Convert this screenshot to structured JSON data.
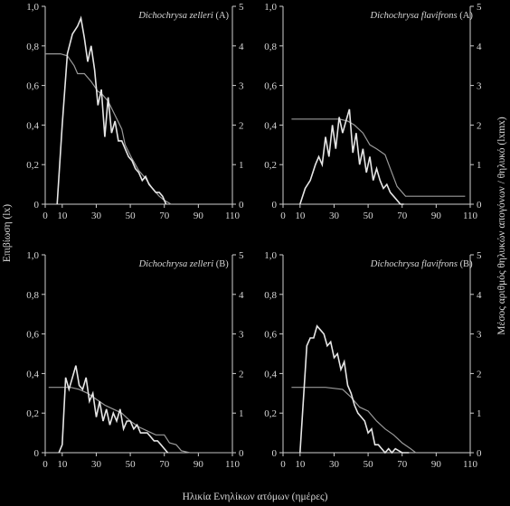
{
  "figure": {
    "xlabel": "Ηλικία Ενηλίκων ατόμων (ημέρες)",
    "ylabel_left": "Επιβίωση (lx)",
    "ylabel_right": "Μέσος αριθμός θηλυκών απογόνων / θηλυκό (lxmx)"
  },
  "colors": {
    "background": "#000000",
    "survival": "#e6e6e6",
    "fecundity": "#9a9a9a",
    "axis": "#cfcfcf"
  },
  "chart_data": [
    {
      "type": "line",
      "title_italic": "Dichochrysa zelleri",
      "title_suffix": " (A)",
      "x_ticks": [
        0,
        10,
        30,
        50,
        70,
        90,
        110
      ],
      "y_ticks": [
        "0",
        "0,2",
        "0,4",
        "0,6",
        "0,8",
        "1,0"
      ],
      "y2_ticks": [
        "0",
        "1",
        "2",
        "3",
        "4",
        "5"
      ],
      "xlim": [
        0,
        110
      ],
      "ylim": [
        0,
        1.0
      ],
      "y2lim": [
        0,
        5
      ],
      "series": [
        {
          "axis": "right",
          "role": "survival",
          "x": [
            7,
            10,
            13,
            16,
            19,
            21,
            23,
            25,
            27,
            29,
            31,
            33,
            35,
            37,
            39,
            41,
            43,
            45,
            47,
            49,
            51,
            53,
            55,
            57,
            59,
            61,
            63,
            65,
            67,
            69,
            71
          ],
          "y": [
            0,
            2.0,
            3.8,
            4.3,
            4.5,
            4.7,
            4.2,
            3.6,
            4.0,
            3.4,
            2.5,
            2.9,
            1.7,
            2.7,
            1.8,
            2.1,
            1.6,
            1.6,
            1.4,
            1.2,
            1.1,
            0.9,
            0.8,
            0.6,
            0.7,
            0.5,
            0.4,
            0.3,
            0.3,
            0.2,
            0
          ]
        },
        {
          "axis": "left",
          "role": "fecundity",
          "x": [
            0,
            9,
            13,
            17,
            19,
            23,
            27,
            31,
            33,
            37,
            41,
            45,
            47,
            51,
            55,
            59,
            63,
            67,
            70,
            74
          ],
          "y": [
            0.76,
            0.76,
            0.75,
            0.7,
            0.66,
            0.66,
            0.62,
            0.57,
            0.56,
            0.52,
            0.45,
            0.38,
            0.3,
            0.23,
            0.17,
            0.13,
            0.08,
            0.04,
            0.02,
            0
          ]
        }
      ]
    },
    {
      "type": "line",
      "title_italic": "Dichochrysa flavifrons",
      "title_suffix": " (A)",
      "x_ticks": [
        0,
        10,
        30,
        50,
        70,
        90,
        110
      ],
      "y_ticks": [
        "0",
        "0,2",
        "0,4",
        "0,6",
        "0,8",
        "1,0"
      ],
      "y2_ticks": [
        "0",
        "1",
        "2",
        "3",
        "4",
        "5"
      ],
      "xlim": [
        0,
        110
      ],
      "ylim": [
        0,
        1.0
      ],
      "y2lim": [
        0,
        5
      ],
      "series": [
        {
          "axis": "right",
          "role": "survival",
          "x": [
            10,
            13,
            16,
            19,
            21,
            23,
            25,
            27,
            29,
            31,
            33,
            35,
            37,
            39,
            41,
            43,
            45,
            47,
            49,
            51,
            53,
            55,
            57,
            59,
            61,
            63,
            65,
            67,
            69,
            71
          ],
          "y": [
            0,
            0.4,
            0.6,
            1.0,
            1.2,
            1.0,
            1.7,
            1.2,
            2.0,
            1.4,
            2.2,
            1.8,
            2.1,
            2.4,
            1.3,
            1.8,
            1.0,
            1.4,
            0.8,
            1.2,
            0.6,
            0.9,
            0.6,
            0.4,
            0.5,
            0.3,
            0.2,
            0.1,
            0,
            0
          ]
        },
        {
          "axis": "left",
          "role": "fecundity",
          "x": [
            5,
            15,
            25,
            33,
            38,
            42,
            47,
            51,
            55,
            60,
            63,
            67,
            72,
            80,
            95,
            107
          ],
          "y": [
            0.43,
            0.43,
            0.43,
            0.43,
            0.42,
            0.4,
            0.36,
            0.3,
            0.28,
            0.25,
            0.18,
            0.09,
            0.04,
            0.04,
            0.04,
            0.04
          ]
        }
      ]
    },
    {
      "type": "line",
      "title_italic": "Dichochrysa zelleri",
      "title_suffix": " (B)",
      "x_ticks": [
        0,
        10,
        30,
        50,
        70,
        90,
        110
      ],
      "y_ticks": [
        "0",
        "0,2",
        "0,4",
        "0,6",
        "0,8",
        "1,0"
      ],
      "y2_ticks": [
        "0",
        "1",
        "2",
        "3",
        "4",
        "5"
      ],
      "xlim": [
        0,
        110
      ],
      "ylim": [
        0,
        1.0
      ],
      "y2lim": [
        0,
        5
      ],
      "series": [
        {
          "axis": "right",
          "role": "survival",
          "x": [
            8,
            10,
            12,
            14,
            16,
            18,
            20,
            22,
            24,
            26,
            28,
            30,
            32,
            34,
            36,
            38,
            40,
            42,
            44,
            46,
            48,
            50,
            52,
            54,
            56,
            58,
            60,
            62,
            64,
            66,
            68,
            70,
            72
          ],
          "y": [
            0,
            0.2,
            1.9,
            1.6,
            1.9,
            2.2,
            1.7,
            1.6,
            1.9,
            1.3,
            1.5,
            0.9,
            1.3,
            0.8,
            1.1,
            0.7,
            1.0,
            0.8,
            1.1,
            0.6,
            0.8,
            0.8,
            0.6,
            0.7,
            0.5,
            0.5,
            0.5,
            0.4,
            0.3,
            0.3,
            0.2,
            0.1,
            0
          ]
        },
        {
          "axis": "left",
          "role": "fecundity",
          "x": [
            2,
            10,
            15,
            20,
            25,
            30,
            35,
            40,
            45,
            50,
            55,
            60,
            65,
            70,
            73,
            77,
            80,
            85,
            110
          ],
          "y": [
            0.33,
            0.33,
            0.33,
            0.32,
            0.3,
            0.27,
            0.24,
            0.22,
            0.2,
            0.16,
            0.13,
            0.11,
            0.09,
            0.09,
            0.05,
            0.04,
            0.01,
            0,
            0
          ]
        }
      ]
    },
    {
      "type": "line",
      "title_italic": "Dichochrysa flavifrons",
      "title_suffix": " (B)",
      "x_ticks": [
        0,
        10,
        30,
        50,
        70,
        90,
        110
      ],
      "y_ticks": [
        "0",
        "0,2",
        "0,4",
        "0,6",
        "0,8",
        "1,0"
      ],
      "y2_ticks": [
        "0",
        "1",
        "2",
        "3",
        "4",
        "5"
      ],
      "xlim": [
        0,
        110
      ],
      "ylim": [
        0,
        1.0
      ],
      "y2lim": [
        0,
        5
      ],
      "series": [
        {
          "axis": "right",
          "role": "survival",
          "x": [
            10,
            14,
            16,
            18,
            20,
            22,
            24,
            26,
            28,
            30,
            32,
            34,
            36,
            38,
            40,
            42,
            44,
            46,
            48,
            50,
            52,
            54,
            56,
            58,
            60,
            62,
            64,
            66,
            70,
            74
          ],
          "y": [
            0,
            2.7,
            2.9,
            2.9,
            3.2,
            3.1,
            3.0,
            2.7,
            2.8,
            2.4,
            2.5,
            2.1,
            2.3,
            1.7,
            1.5,
            1.2,
            1.0,
            0.9,
            0.8,
            0.5,
            0.6,
            0.2,
            0.2,
            0.1,
            0,
            0.1,
            0,
            0.1,
            0,
            0
          ]
        },
        {
          "axis": "left",
          "role": "fecundity",
          "x": [
            5,
            15,
            25,
            35,
            40,
            45,
            50,
            55,
            60,
            65,
            70,
            75,
            78
          ],
          "y": [
            0.33,
            0.33,
            0.33,
            0.32,
            0.28,
            0.23,
            0.21,
            0.16,
            0.12,
            0.09,
            0.05,
            0.02,
            0
          ]
        }
      ]
    }
  ]
}
